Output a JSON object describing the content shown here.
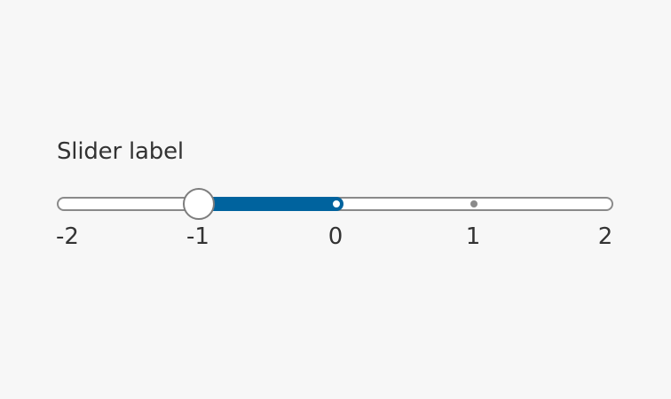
{
  "slider": {
    "label": "Slider label",
    "min": -2,
    "max": 2,
    "value": -1,
    "fill_to": 0,
    "ticks": [
      {
        "value": -2,
        "label": "-2"
      },
      {
        "value": -1,
        "label": "-1"
      },
      {
        "value": 0,
        "label": "0"
      },
      {
        "value": 1,
        "label": "1"
      },
      {
        "value": 2,
        "label": "2"
      }
    ],
    "colors": {
      "fill": "#00639e",
      "track_border": "#8a8a8a",
      "track_bg": "#ffffff",
      "thumb_bg": "#ffffff",
      "thumb_border": "#7d7d7d",
      "text": "#333333"
    }
  }
}
